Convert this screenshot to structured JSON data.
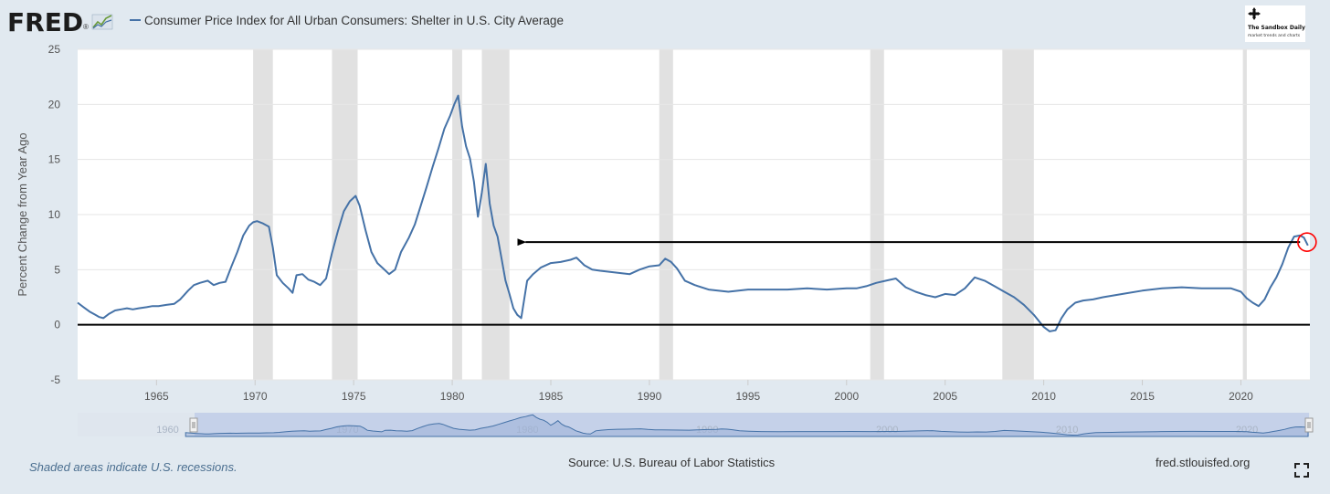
{
  "header": {
    "logo_text": "FRED",
    "logo_mark": "®",
    "series_title": "Consumer Price Index for All Urban Consumers: Shelter in U.S. City Average"
  },
  "watermark": {
    "title": "The Sandbox Daily",
    "subtitle": "market trends and charts",
    "icon": "four-arrows-icon"
  },
  "footer": {
    "recession_note": "Shaded areas indicate U.S. recessions.",
    "source": "Source: U.S. Bureau of Labor Statistics",
    "url": "fred.stlouisfed.org",
    "fullscreen_icon": "fullscreen-icon"
  },
  "colors": {
    "background": "#e1e9f0",
    "plot_bg": "#ffffff",
    "series": "#4572a7",
    "recession": "#e1e1e1",
    "navigator_fill": "#c1cde8",
    "annotation_arrow": "#000000",
    "annotation_circle": "#ff0000"
  },
  "chart_data": {
    "type": "line",
    "title": "",
    "xlabel": "",
    "ylabel": "Percent Change from Year Ago",
    "xlim": [
      1961.0,
      2023.5
    ],
    "ylim": [
      -5,
      25
    ],
    "y_ticks": [
      -5,
      0,
      5,
      10,
      15,
      20,
      25
    ],
    "x_ticks": [
      1965,
      1970,
      1975,
      1980,
      1985,
      1990,
      1995,
      2000,
      2005,
      2010,
      2015,
      2020
    ],
    "navigator_ticks": [
      "1960",
      "1970",
      "1980",
      "1990",
      "2000",
      "2010",
      "2020"
    ],
    "grid": true,
    "legend": "top-left",
    "recessions": [
      [
        1969.9,
        1970.9
      ],
      [
        1973.9,
        1975.2
      ],
      [
        1980.0,
        1980.5
      ],
      [
        1981.5,
        1982.9
      ],
      [
        1990.5,
        1991.2
      ],
      [
        2001.2,
        2001.9
      ],
      [
        2007.9,
        2009.5
      ],
      [
        2020.1,
        2020.3
      ]
    ],
    "series": [
      {
        "name": "Consumer Price Index for All Urban Consumers: Shelter in U.S. City Average",
        "x": [
          1961.0,
          1961.3,
          1961.6,
          1961.9,
          1962.1,
          1962.3,
          1962.6,
          1962.9,
          1963.2,
          1963.5,
          1963.8,
          1964.1,
          1964.5,
          1964.8,
          1965.1,
          1965.5,
          1965.9,
          1966.2,
          1966.6,
          1966.9,
          1967.2,
          1967.6,
          1967.9,
          1968.2,
          1968.5,
          1968.8,
          1969.1,
          1969.4,
          1969.7,
          1969.9,
          1970.1,
          1970.4,
          1970.7,
          1970.9,
          1971.1,
          1971.4,
          1971.7,
          1971.9,
          1972.1,
          1972.4,
          1972.7,
          1973.0,
          1973.3,
          1973.6,
          1973.9,
          1974.2,
          1974.5,
          1974.8,
          1975.1,
          1975.3,
          1975.6,
          1975.9,
          1976.2,
          1976.5,
          1976.8,
          1977.1,
          1977.4,
          1977.8,
          1978.1,
          1978.4,
          1978.7,
          1979.0,
          1979.3,
          1979.6,
          1979.9,
          1980.1,
          1980.3,
          1980.5,
          1980.7,
          1980.9,
          1981.1,
          1981.3,
          1981.5,
          1981.7,
          1981.9,
          1982.1,
          1982.3,
          1982.5,
          1982.7,
          1982.9,
          1983.1,
          1983.3,
          1983.5,
          1983.8,
          1984.1,
          1984.5,
          1985.0,
          1985.5,
          1986.0,
          1986.3,
          1986.7,
          1987.1,
          1987.5,
          1988.0,
          1988.5,
          1989.0,
          1989.5,
          1990.0,
          1990.5,
          1990.8,
          1991.1,
          1991.4,
          1991.8,
          1992.3,
          1993.0,
          1994.0,
          1995.0,
          1996.0,
          1997.0,
          1998.0,
          1999.0,
          2000.0,
          2000.5,
          2001.0,
          2001.5,
          2002.0,
          2002.5,
          2003.0,
          2003.5,
          2004.0,
          2004.5,
          2005.0,
          2005.5,
          2006.0,
          2006.5,
          2007.0,
          2007.5,
          2008.0,
          2008.5,
          2009.0,
          2009.5,
          2010.0,
          2010.3,
          2010.6,
          2010.9,
          2011.2,
          2011.6,
          2012.0,
          2012.5,
          2013.0,
          2014.0,
          2015.0,
          2016.0,
          2017.0,
          2018.0,
          2019.0,
          2019.5,
          2020.0,
          2020.3,
          2020.6,
          2020.9,
          2021.2,
          2021.5,
          2021.8,
          2022.1,
          2022.4,
          2022.7,
          2023.0,
          2023.2,
          2023.4
        ],
        "values": [
          2.0,
          1.6,
          1.2,
          0.9,
          0.7,
          0.6,
          1.0,
          1.3,
          1.4,
          1.5,
          1.4,
          1.5,
          1.6,
          1.7,
          1.7,
          1.8,
          1.9,
          2.3,
          3.1,
          3.6,
          3.8,
          4.0,
          3.6,
          3.8,
          3.9,
          5.3,
          6.6,
          8.1,
          9.0,
          9.3,
          9.4,
          9.2,
          8.9,
          7.0,
          4.5,
          3.8,
          3.3,
          2.9,
          4.5,
          4.6,
          4.1,
          3.9,
          3.6,
          4.2,
          6.5,
          8.5,
          10.3,
          11.2,
          11.7,
          10.8,
          8.6,
          6.6,
          5.6,
          5.1,
          4.6,
          5.0,
          6.6,
          7.9,
          9.1,
          10.8,
          12.5,
          14.3,
          16.0,
          17.8,
          19.0,
          20.0,
          20.8,
          18.0,
          16.2,
          15.1,
          13.0,
          9.8,
          12.0,
          14.6,
          11.0,
          9.0,
          8.0,
          6.0,
          4.0,
          2.8,
          1.5,
          0.9,
          0.6,
          4.0,
          4.6,
          5.2,
          5.6,
          5.7,
          5.9,
          6.1,
          5.4,
          5.0,
          4.9,
          4.8,
          4.7,
          4.6,
          5.0,
          5.3,
          5.4,
          6.0,
          5.7,
          5.1,
          4.0,
          3.6,
          3.2,
          3.0,
          3.2,
          3.2,
          3.2,
          3.3,
          3.2,
          3.3,
          3.3,
          3.5,
          3.8,
          4.0,
          4.2,
          3.4,
          3.0,
          2.7,
          2.5,
          2.8,
          2.7,
          3.3,
          4.3,
          4.0,
          3.5,
          3.0,
          2.5,
          1.8,
          0.9,
          -0.2,
          -0.6,
          -0.5,
          0.6,
          1.4,
          2.0,
          2.2,
          2.3,
          2.5,
          2.8,
          3.1,
          3.3,
          3.4,
          3.3,
          3.3,
          3.3,
          3.0,
          2.4,
          2.0,
          1.7,
          2.3,
          3.4,
          4.3,
          5.5,
          7.0,
          8.0,
          8.1,
          7.9,
          7.2
        ]
      }
    ],
    "annotations": [
      {
        "type": "arrow",
        "from": [
          2023.0,
          7.5
        ],
        "to": [
          1983.3,
          7.5
        ]
      },
      {
        "type": "circle",
        "at": [
          2023.4,
          7.5
        ]
      },
      {
        "type": "hline",
        "y": 0
      }
    ]
  }
}
